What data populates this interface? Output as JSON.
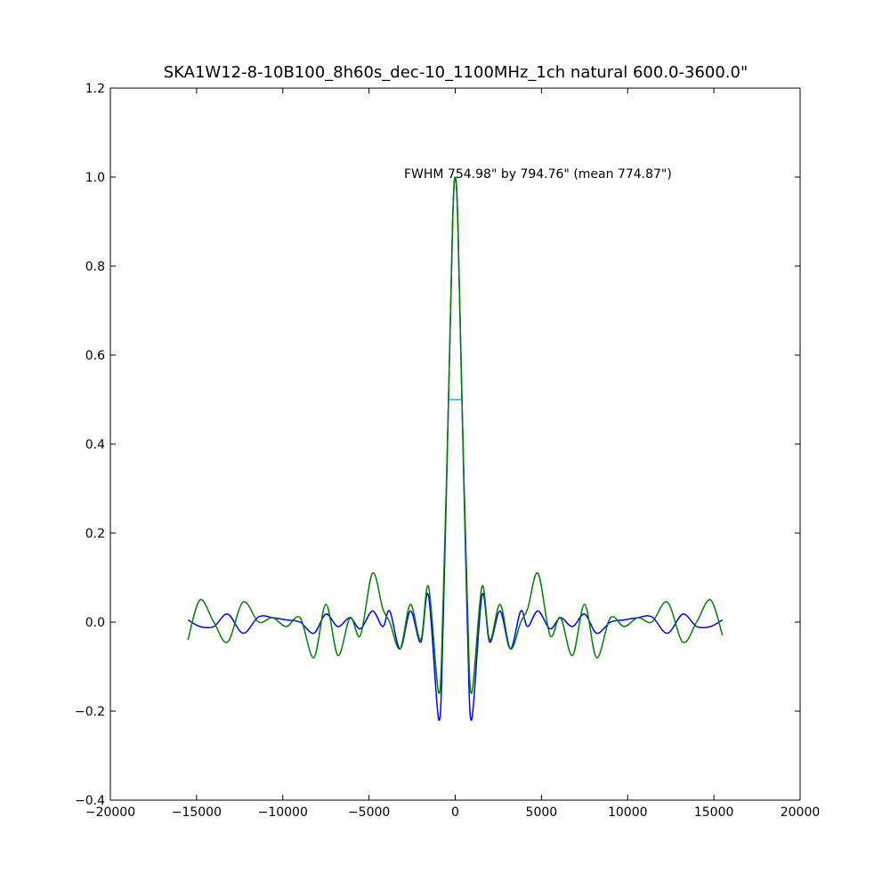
{
  "chart_data": {
    "type": "line",
    "title": "SKA1W12-8-10B100_8h60s_dec-10_1100MHz_1ch natural  600.0-3600.0\"",
    "annotation": "FWHM 754.98\" by 794.76\" (mean 774.87\")",
    "xlim": [
      -20000,
      20000
    ],
    "ylim": [
      -0.4,
      1.2
    ],
    "xticks": [
      {
        "value": -20000,
        "label": "−20000"
      },
      {
        "value": -15000,
        "label": "−15000"
      },
      {
        "value": -10000,
        "label": "−10000"
      },
      {
        "value": -5000,
        "label": "−5000"
      },
      0,
      5000,
      10000,
      15000,
      20000
    ],
    "yticks": [
      {
        "value": -0.4,
        "label": "−0.4"
      },
      {
        "value": -0.2,
        "label": "−0.2"
      },
      {
        "value": 0,
        "label": "0.0"
      },
      0.2,
      0.4,
      0.6,
      0.8,
      {
        "value": 1,
        "label": "1.0"
      },
      1.2
    ],
    "grid": false,
    "series": [
      {
        "color": "#0000ff",
        "x": [
          -15500,
          -14800,
          -14000,
          -13200,
          -12300,
          -11400,
          -10600,
          -9800,
          -9000,
          -8200,
          -7500,
          -6800,
          -6100,
          -5500,
          -4800,
          -4200,
          -3800,
          -3200,
          -2600,
          -2000,
          -1550,
          -950,
          -700,
          -390,
          -150,
          0,
          150,
          390,
          700,
          950,
          1550,
          2000,
          2600,
          3200,
          3800,
          4200,
          4800,
          5500,
          6100,
          6800,
          7500,
          8200,
          9000,
          9800,
          10600,
          11400,
          12300,
          13200,
          14000,
          14800,
          15500
        ],
        "values": [
          0.005,
          -0.01,
          -0.01,
          0.018,
          -0.025,
          0.012,
          0.01,
          0.005,
          0.0,
          -0.025,
          0.018,
          -0.01,
          0.01,
          -0.015,
          0.025,
          -0.01,
          0.025,
          -0.06,
          0.025,
          -0.045,
          0.06,
          -0.22,
          0.0,
          0.5,
          0.9,
          1.0,
          0.9,
          0.5,
          0.0,
          -0.22,
          0.06,
          -0.045,
          0.025,
          -0.06,
          0.025,
          -0.01,
          0.025,
          -0.015,
          0.01,
          -0.01,
          0.018,
          -0.025,
          0.0,
          0.005,
          0.01,
          0.012,
          -0.025,
          0.018,
          -0.01,
          -0.01,
          0.005
        ]
      },
      {
        "color": "#008000",
        "x": [
          -15500,
          -14800,
          -14000,
          -13200,
          -12300,
          -11400,
          -10600,
          -9800,
          -9000,
          -8200,
          -7500,
          -6800,
          -6100,
          -5500,
          -4800,
          -4200,
          -3800,
          -3200,
          -2600,
          -2000,
          -1550,
          -950,
          -700,
          -390,
          -150,
          0,
          150,
          390,
          700,
          950,
          1550,
          2000,
          2600,
          3200,
          3800,
          4200,
          4800,
          5500,
          6100,
          6800,
          7500,
          8200,
          9000,
          9800,
          10600,
          11400,
          12300,
          13200,
          14000,
          14800,
          15500
        ],
        "values": [
          -0.04,
          0.05,
          0.0,
          -0.045,
          0.045,
          0.0,
          0.01,
          -0.01,
          0.01,
          -0.08,
          0.04,
          -0.075,
          0.01,
          -0.03,
          0.11,
          0.03,
          0.0,
          -0.06,
          0.04,
          -0.04,
          0.08,
          -0.16,
          0.05,
          0.5,
          0.9,
          1.0,
          0.9,
          0.5,
          0.05,
          -0.16,
          0.08,
          -0.04,
          0.04,
          -0.06,
          0.0,
          0.03,
          0.11,
          -0.03,
          0.01,
          -0.075,
          0.04,
          -0.08,
          0.01,
          -0.01,
          0.01,
          0.0,
          0.045,
          -0.045,
          0.0,
          0.05,
          -0.03
        ]
      },
      {
        "color": "#00bfbf",
        "x": [
          -387,
          387
        ],
        "values": [
          0.5,
          0.5
        ]
      }
    ]
  }
}
